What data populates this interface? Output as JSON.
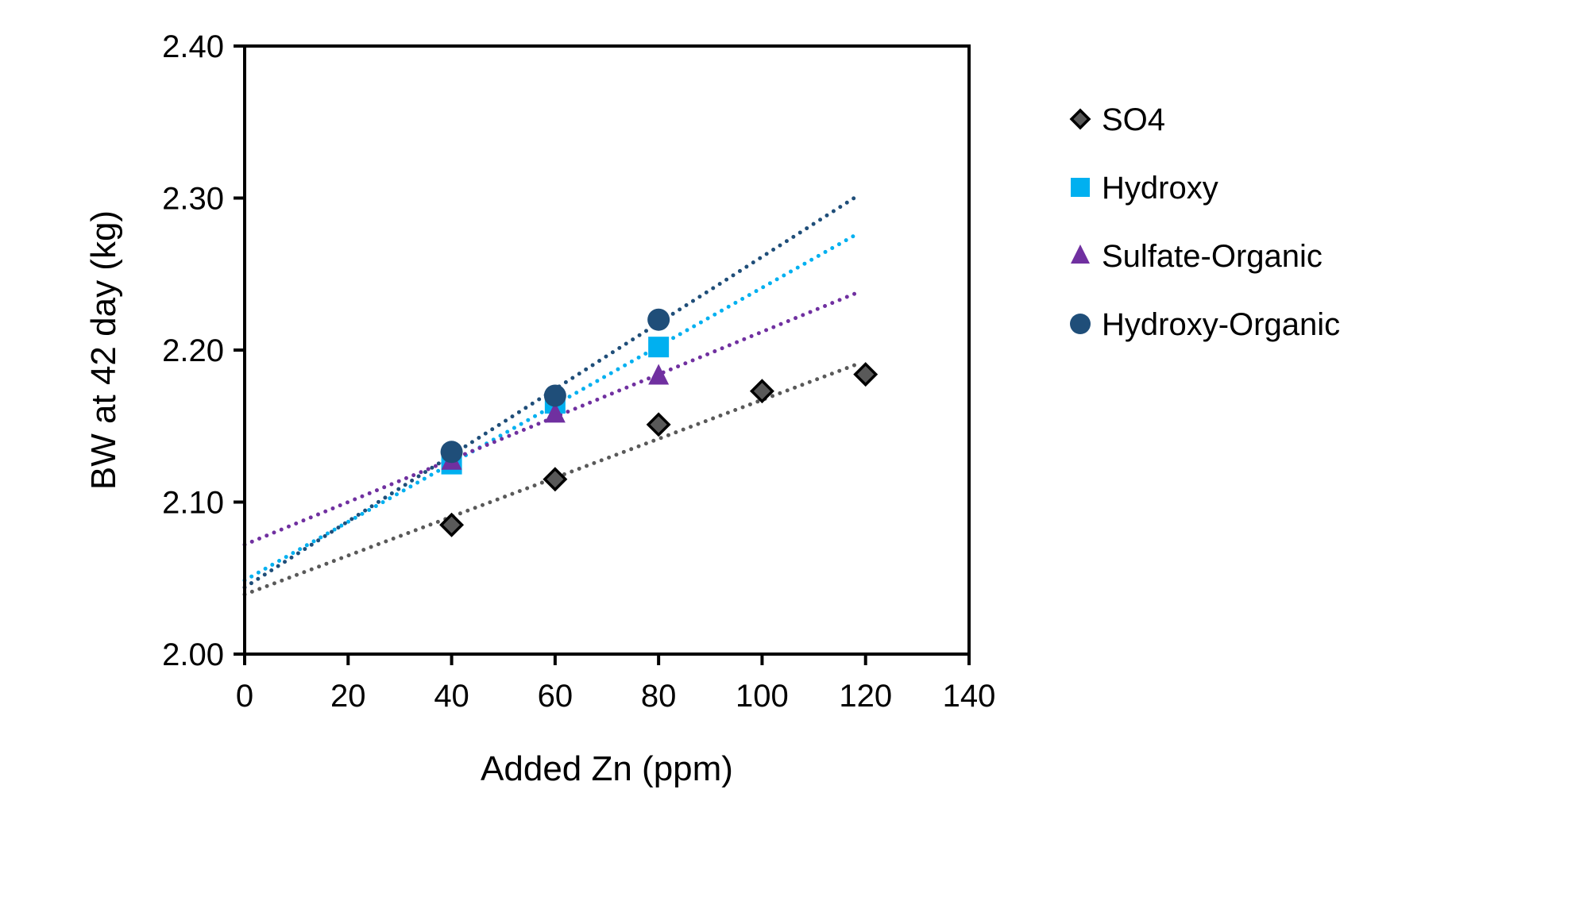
{
  "chart_data": {
    "type": "scatter",
    "xlabel": "Added Zn (ppm)",
    "ylabel": "BW at 42 day (kg)",
    "xlim": [
      0,
      140
    ],
    "ylim": [
      2.0,
      2.4
    ],
    "xticks": [
      "0",
      "20",
      "40",
      "60",
      "80",
      "100",
      "120",
      "140"
    ],
    "yticks": [
      "2.00",
      "2.10",
      "2.20",
      "2.30",
      "2.40"
    ],
    "grid": false,
    "legend_position": "right",
    "trendline": "linear, dotted",
    "series": [
      {
        "name": "SO4",
        "marker": "diamond",
        "color": "#595959",
        "x": [
          40,
          60,
          80,
          100,
          120
        ],
        "y": [
          2.085,
          2.115,
          2.151,
          2.173,
          2.184
        ]
      },
      {
        "name": "Hydroxy",
        "marker": "square",
        "color": "#00b0f0",
        "x": [
          40,
          60,
          80
        ],
        "y": [
          2.125,
          2.165,
          2.202
        ]
      },
      {
        "name": "Sulfate-Organic",
        "marker": "triangle",
        "color": "#7030a0",
        "x": [
          40,
          60,
          80
        ],
        "y": [
          2.127,
          2.158,
          2.183
        ]
      },
      {
        "name": "Hydroxy-Organic",
        "marker": "circle",
        "color": "#1f4e79",
        "x": [
          40,
          60,
          80
        ],
        "y": [
          2.133,
          2.17,
          2.22
        ]
      }
    ]
  }
}
